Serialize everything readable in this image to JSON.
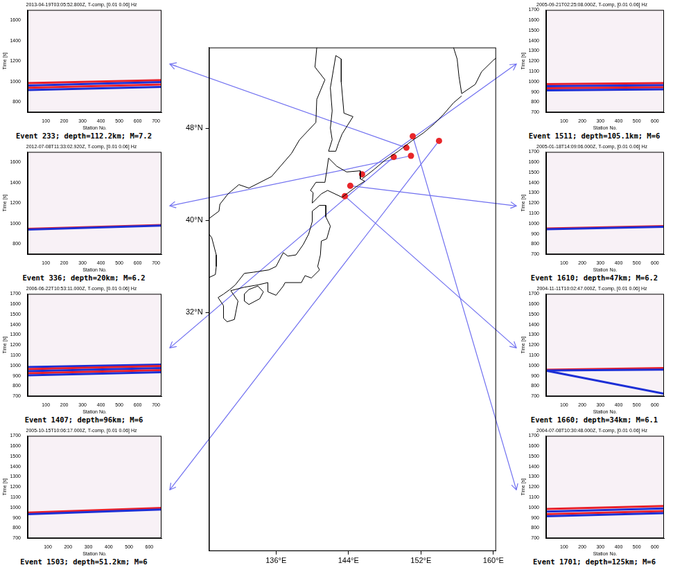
{
  "chart_data": [
    {
      "type": "map",
      "xlim": [
        128.6,
        160.3
      ],
      "xticks": [
        {
          "value": 136,
          "label": "136°E"
        },
        {
          "value": 144,
          "label": "144°E"
        },
        {
          "value": 152,
          "label": "152°E"
        },
        {
          "value": 160,
          "label": "160°E"
        }
      ],
      "ylim": [
        11.3,
        55
      ],
      "yticks": [
        {
          "value": 32,
          "label": "32°N"
        },
        {
          "value": 40,
          "label": "40°N"
        },
        {
          "value": 48,
          "label": "48°N"
        }
      ],
      "color": "#e8262a",
      "points": [
        {
          "event": 233,
          "lon": 150.4,
          "lat": 46.3
        },
        {
          "event": 336,
          "lon": 150.9,
          "lat": 45.6
        },
        {
          "event": 1407,
          "lon": 149.0,
          "lat": 45.5
        },
        {
          "event": 1503,
          "lon": 154.0,
          "lat": 46.9
        },
        {
          "event": 1511,
          "lon": 145.5,
          "lat": 44.0
        },
        {
          "event": 1610,
          "lon": 144.2,
          "lat": 43.0
        },
        {
          "event": 1660,
          "lon": 143.6,
          "lat": 42.1
        },
        {
          "event": 1701,
          "lon": 151.1,
          "lat": 47.3
        }
      ],
      "coastline": [
        [
          [
            130.2,
            33.6
          ],
          [
            130.9,
            34.0
          ],
          [
            131.5,
            34.4
          ],
          [
            132.5,
            35.4
          ],
          [
            133.5,
            35.5
          ],
          [
            135.2,
            35.7
          ],
          [
            136.0,
            36.0
          ],
          [
            136.8,
            37.2
          ],
          [
            137.3,
            36.9
          ],
          [
            138.2,
            37.0
          ],
          [
            139.0,
            37.9
          ],
          [
            139.6,
            38.8
          ],
          [
            140.0,
            39.9
          ],
          [
            140.0,
            40.8
          ],
          [
            140.8,
            41.3
          ],
          [
            141.5,
            41.3
          ],
          [
            141.5,
            40.3
          ],
          [
            142.0,
            39.5
          ],
          [
            141.6,
            38.4
          ],
          [
            141.0,
            38.2
          ],
          [
            140.9,
            37.0
          ],
          [
            140.6,
            36.0
          ],
          [
            140.8,
            35.7
          ],
          [
            139.9,
            35.0
          ],
          [
            139.2,
            35.2
          ],
          [
            138.8,
            34.6
          ],
          [
            138.2,
            34.6
          ],
          [
            137.0,
            34.6
          ],
          [
            136.8,
            34.3
          ],
          [
            136.0,
            33.5
          ],
          [
            135.1,
            33.8
          ],
          [
            135.1,
            34.6
          ],
          [
            134.0,
            34.4
          ],
          [
            132.5,
            34.2
          ],
          [
            131.0,
            33.9
          ],
          [
            131.8,
            33.0
          ],
          [
            131.4,
            31.4
          ],
          [
            130.6,
            31.2
          ],
          [
            130.2,
            31.5
          ],
          [
            130.2,
            32.6
          ],
          [
            129.6,
            33.3
          ],
          [
            130.2,
            33.6
          ]
        ],
        [
          [
            132.5,
            33.0
          ],
          [
            133.0,
            32.7
          ],
          [
            134.2,
            33.2
          ],
          [
            134.6,
            33.8
          ],
          [
            134.0,
            34.3
          ],
          [
            133.0,
            34.0
          ],
          [
            132.5,
            33.6
          ],
          [
            132.5,
            33.0
          ]
        ],
        [
          [
            140.0,
            41.5
          ],
          [
            140.1,
            42.4
          ],
          [
            139.8,
            42.6
          ],
          [
            140.4,
            43.3
          ],
          [
            141.4,
            43.3
          ],
          [
            141.6,
            44.3
          ],
          [
            141.8,
            45.4
          ],
          [
            142.7,
            44.7
          ],
          [
            143.8,
            44.2
          ],
          [
            145.3,
            44.3
          ],
          [
            145.3,
            43.6
          ],
          [
            145.8,
            43.4
          ],
          [
            145.0,
            43.0
          ],
          [
            143.3,
            42.0
          ],
          [
            141.7,
            42.6
          ],
          [
            141.0,
            42.3
          ],
          [
            140.5,
            41.9
          ],
          [
            140.0,
            41.5
          ]
        ],
        [
          [
            141.8,
            46.0
          ],
          [
            142.2,
            47.0
          ],
          [
            142.0,
            48.0
          ],
          [
            142.2,
            49.5
          ],
          [
            142.0,
            51.5
          ],
          [
            142.6,
            54.3
          ],
          [
            143.2,
            54.0
          ],
          [
            143.2,
            52.0
          ],
          [
            143.5,
            49.3
          ],
          [
            144.5,
            49.0
          ],
          [
            143.3,
            47.5
          ],
          [
            142.9,
            46.7
          ],
          [
            142.6,
            46.0
          ],
          [
            141.8,
            46.0
          ]
        ],
        [
          [
            140.5,
            55.0
          ],
          [
            140.3,
            53.3
          ],
          [
            141.4,
            52.2
          ],
          [
            140.5,
            50.5
          ],
          [
            140.4,
            48.5
          ],
          [
            138.6,
            47.0
          ],
          [
            137.7,
            45.8
          ],
          [
            135.5,
            43.8
          ],
          [
            133.0,
            42.8
          ],
          [
            131.9,
            43.1
          ],
          [
            130.7,
            42.3
          ],
          [
            129.8,
            41.4
          ],
          [
            129.7,
            40.8
          ],
          [
            128.5,
            40.1
          ]
        ],
        [
          [
            128.5,
            38.9
          ],
          [
            128.9,
            38.5
          ],
          [
            129.4,
            37.0
          ],
          [
            129.4,
            36.0
          ],
          [
            129.3,
            35.3
          ],
          [
            128.5,
            35.0
          ]
        ],
        [
          [
            145.5,
            43.6
          ],
          [
            146.8,
            44.4
          ],
          [
            148.0,
            45.2
          ],
          [
            149.5,
            46.0
          ],
          [
            151.0,
            46.9
          ],
          [
            152.3,
            47.6
          ],
          [
            153.5,
            48.4
          ],
          [
            154.5,
            49.2
          ],
          [
            155.6,
            50.2
          ],
          [
            156.5,
            50.8
          ]
        ],
        [
          [
            155.6,
            55.0
          ],
          [
            156.0,
            54.0
          ],
          [
            156.2,
            52.5
          ],
          [
            156.5,
            51.0
          ],
          [
            158.0,
            51.8
          ],
          [
            158.7,
            52.9
          ],
          [
            160.0,
            53.9
          ],
          [
            160.5,
            54.2
          ]
        ]
      ]
    },
    {
      "type": "line",
      "event": 233,
      "title": "2013-04-19T03:05:52.800Z, T-comp, [0.01 0.06] Hz",
      "caption": "Event 233; depth=112.2km; M=7.2",
      "x_label": "Station No.",
      "y_label": "Time [s]",
      "xlim": [
        1,
        730
      ],
      "xticks": [
        100,
        200,
        300,
        400,
        500,
        600,
        700
      ],
      "ylim": [
        700,
        1700
      ],
      "yticks": [
        800,
        1000,
        1200,
        1400,
        1600
      ],
      "series": [
        {
          "color": "#1c2fd6",
          "x": [
            1,
            730
          ],
          "values": [
            918,
            948
          ]
        },
        {
          "color": "#e8202a",
          "x": [
            1,
            730
          ],
          "values": [
            940,
            972
          ]
        },
        {
          "color": "#1c2fd6",
          "x": [
            1,
            730
          ],
          "values": [
            962,
            995
          ]
        },
        {
          "color": "#e8202a",
          "x": [
            1,
            730
          ],
          "values": [
            985,
            1015
          ]
        }
      ]
    },
    {
      "type": "line",
      "event": 336,
      "title": "2012-07-08T11:33:02.920Z, T-comp, [0.01 0.06] Hz",
      "caption": "Event 336; depth=20km; M=6.2",
      "x_label": "Station No.",
      "y_label": "Time [s]",
      "xlim": [
        1,
        730
      ],
      "xticks": [
        100,
        200,
        300,
        400,
        500,
        600,
        700
      ],
      "ylim": [
        700,
        1700
      ],
      "yticks": [
        800,
        1000,
        1200,
        1400,
        1600
      ],
      "series": [
        {
          "color": "#1c2fd6",
          "x": [
            1,
            730
          ],
          "values": [
            942,
            980
          ]
        },
        {
          "color": "#e8202a",
          "x": [
            1,
            730
          ],
          "values": [
            948,
            986
          ]
        }
      ]
    },
    {
      "type": "line",
      "event": 1407,
      "title": "2006-06-22T10:53:11.000Z, T-comp, [0.01 0.06] Hz",
      "caption": "Event 1407; depth=96km; M=6",
      "x_label": "Station No.",
      "y_label": "Time [s]",
      "xlim": [
        1,
        730
      ],
      "xticks": [
        100,
        200,
        300,
        400,
        500,
        600,
        700
      ],
      "ylim": [
        700,
        1700
      ],
      "yticks": [
        700,
        800,
        900,
        1000,
        1100,
        1200,
        1300,
        1400,
        1500,
        1600,
        1700
      ],
      "series": [
        {
          "color": "#1c2fd6",
          "x": [
            1,
            730
          ],
          "values": [
            905,
            935
          ]
        },
        {
          "color": "#e8202a",
          "x": [
            1,
            730
          ],
          "values": [
            925,
            955
          ]
        },
        {
          "color": "#1c2fd6",
          "x": [
            1,
            730
          ],
          "values": [
            945,
            975
          ]
        },
        {
          "color": "#e8202a",
          "x": [
            1,
            730
          ],
          "values": [
            965,
            995
          ]
        },
        {
          "color": "#1c2fd6",
          "x": [
            1,
            730
          ],
          "values": [
            985,
            1010
          ]
        }
      ]
    },
    {
      "type": "line",
      "event": 1503,
      "title": "2005-10-15T10:06:17.000Z, T-comp, [0.01 0.06] Hz",
      "caption": "Event 1503; depth=51.2km; M=6",
      "x_label": "Station No.",
      "y_label": "Time [s]",
      "xlim": [
        1,
        660
      ],
      "xticks": [
        100,
        200,
        300,
        400,
        500,
        600
      ],
      "ylim": [
        700,
        1700
      ],
      "yticks": [
        700,
        800,
        900,
        1000,
        1100,
        1200,
        1300,
        1400,
        1500,
        1600,
        1700
      ],
      "series": [
        {
          "color": "#1c2fd6",
          "x": [
            1,
            660
          ],
          "values": [
            935,
            980
          ]
        },
        {
          "color": "#e8202a",
          "x": [
            1,
            660
          ],
          "values": [
            950,
            995
          ]
        }
      ]
    },
    {
      "type": "line",
      "event": 1511,
      "title": "2005-09-21T02:25:08.000Z, T-comp, [0.01 0.06] Hz",
      "caption": "Event 1511; depth=105.1km; M=6",
      "x_label": "Station No.",
      "y_label": "Time [s]",
      "xlim": [
        1,
        650
      ],
      "xticks": [
        100,
        200,
        300,
        400,
        500,
        600
      ],
      "ylim": [
        700,
        1700
      ],
      "yticks": [
        700,
        800,
        900,
        1000,
        1100,
        1200,
        1300,
        1400,
        1500,
        1600,
        1700
      ],
      "series": [
        {
          "color": "#1c2fd6",
          "x": [
            1,
            650
          ],
          "values": [
            915,
            925
          ]
        },
        {
          "color": "#e8202a",
          "x": [
            1,
            650
          ],
          "values": [
            935,
            945
          ]
        },
        {
          "color": "#1c2fd6",
          "x": [
            1,
            650
          ],
          "values": [
            955,
            965
          ]
        },
        {
          "color": "#e8202a",
          "x": [
            1,
            650
          ],
          "values": [
            975,
            985
          ]
        }
      ]
    },
    {
      "type": "line",
      "event": 1610,
      "title": "2005-01-18T14:09:06.000Z, T-comp, [0.01 0.06] Hz",
      "caption": "Event 1610; depth=47km; M=6.2",
      "x_label": "Station No.",
      "y_label": "Time [s]",
      "xlim": [
        1,
        650
      ],
      "xticks": [
        100,
        200,
        300,
        400,
        500,
        600
      ],
      "ylim": [
        700,
        1700
      ],
      "yticks": [
        700,
        800,
        900,
        1000,
        1100,
        1200,
        1300,
        1400,
        1500,
        1600,
        1700
      ],
      "series": [
        {
          "color": "#1c2fd6",
          "x": [
            1,
            650
          ],
          "values": [
            945,
            968
          ]
        },
        {
          "color": "#e8202a",
          "x": [
            1,
            650
          ],
          "values": [
            952,
            975
          ]
        }
      ]
    },
    {
      "type": "line",
      "event": 1660,
      "title": "2004-11-11T10:02:47.000Z, T-comp, [0.01 0.06] Hz",
      "caption": "Event 1660; depth=34km; M=6.1",
      "x_label": "Station No.",
      "y_label": "Time [s]",
      "xlim": [
        1,
        650
      ],
      "xticks": [
        100,
        200,
        300,
        400,
        500,
        600
      ],
      "ylim": [
        700,
        1700
      ],
      "yticks": [
        700,
        800,
        900,
        1000,
        1100,
        1200,
        1300,
        1400,
        1500,
        1600,
        1700
      ],
      "series": [
        {
          "color": "#1c2fd6",
          "x": [
            1,
            650
          ],
          "values": [
            950,
            725
          ]
        },
        {
          "color": "#1c2fd6",
          "x": [
            1,
            650
          ],
          "values": [
            952,
            960
          ]
        },
        {
          "color": "#e8202a",
          "x": [
            1,
            650
          ],
          "values": [
            958,
            975
          ]
        }
      ]
    },
    {
      "type": "line",
      "event": 1701,
      "title": "2004-07-08T10:30:48.000Z, T-comp, [0.01 0.06] Hz",
      "caption": "Event 1701; depth=125km; M=6",
      "x_label": "Station No.",
      "y_label": "Time [s]",
      "xlim": [
        1,
        650
      ],
      "xticks": [
        100,
        200,
        300,
        400,
        500,
        600
      ],
      "ylim": [
        700,
        1700
      ],
      "yticks": [
        700,
        800,
        900,
        1000,
        1100,
        1200,
        1300,
        1400,
        1500,
        1600,
        1700
      ],
      "series": [
        {
          "color": "#1c2fd6",
          "x": [
            1,
            650
          ],
          "values": [
            915,
            945
          ]
        },
        {
          "color": "#e8202a",
          "x": [
            1,
            650
          ],
          "values": [
            935,
            965
          ]
        },
        {
          "color": "#1c2fd6",
          "x": [
            1,
            650
          ],
          "values": [
            960,
            990
          ]
        },
        {
          "color": "#e8202a",
          "x": [
            1,
            650
          ],
          "values": [
            985,
            1015
          ]
        }
      ]
    }
  ]
}
